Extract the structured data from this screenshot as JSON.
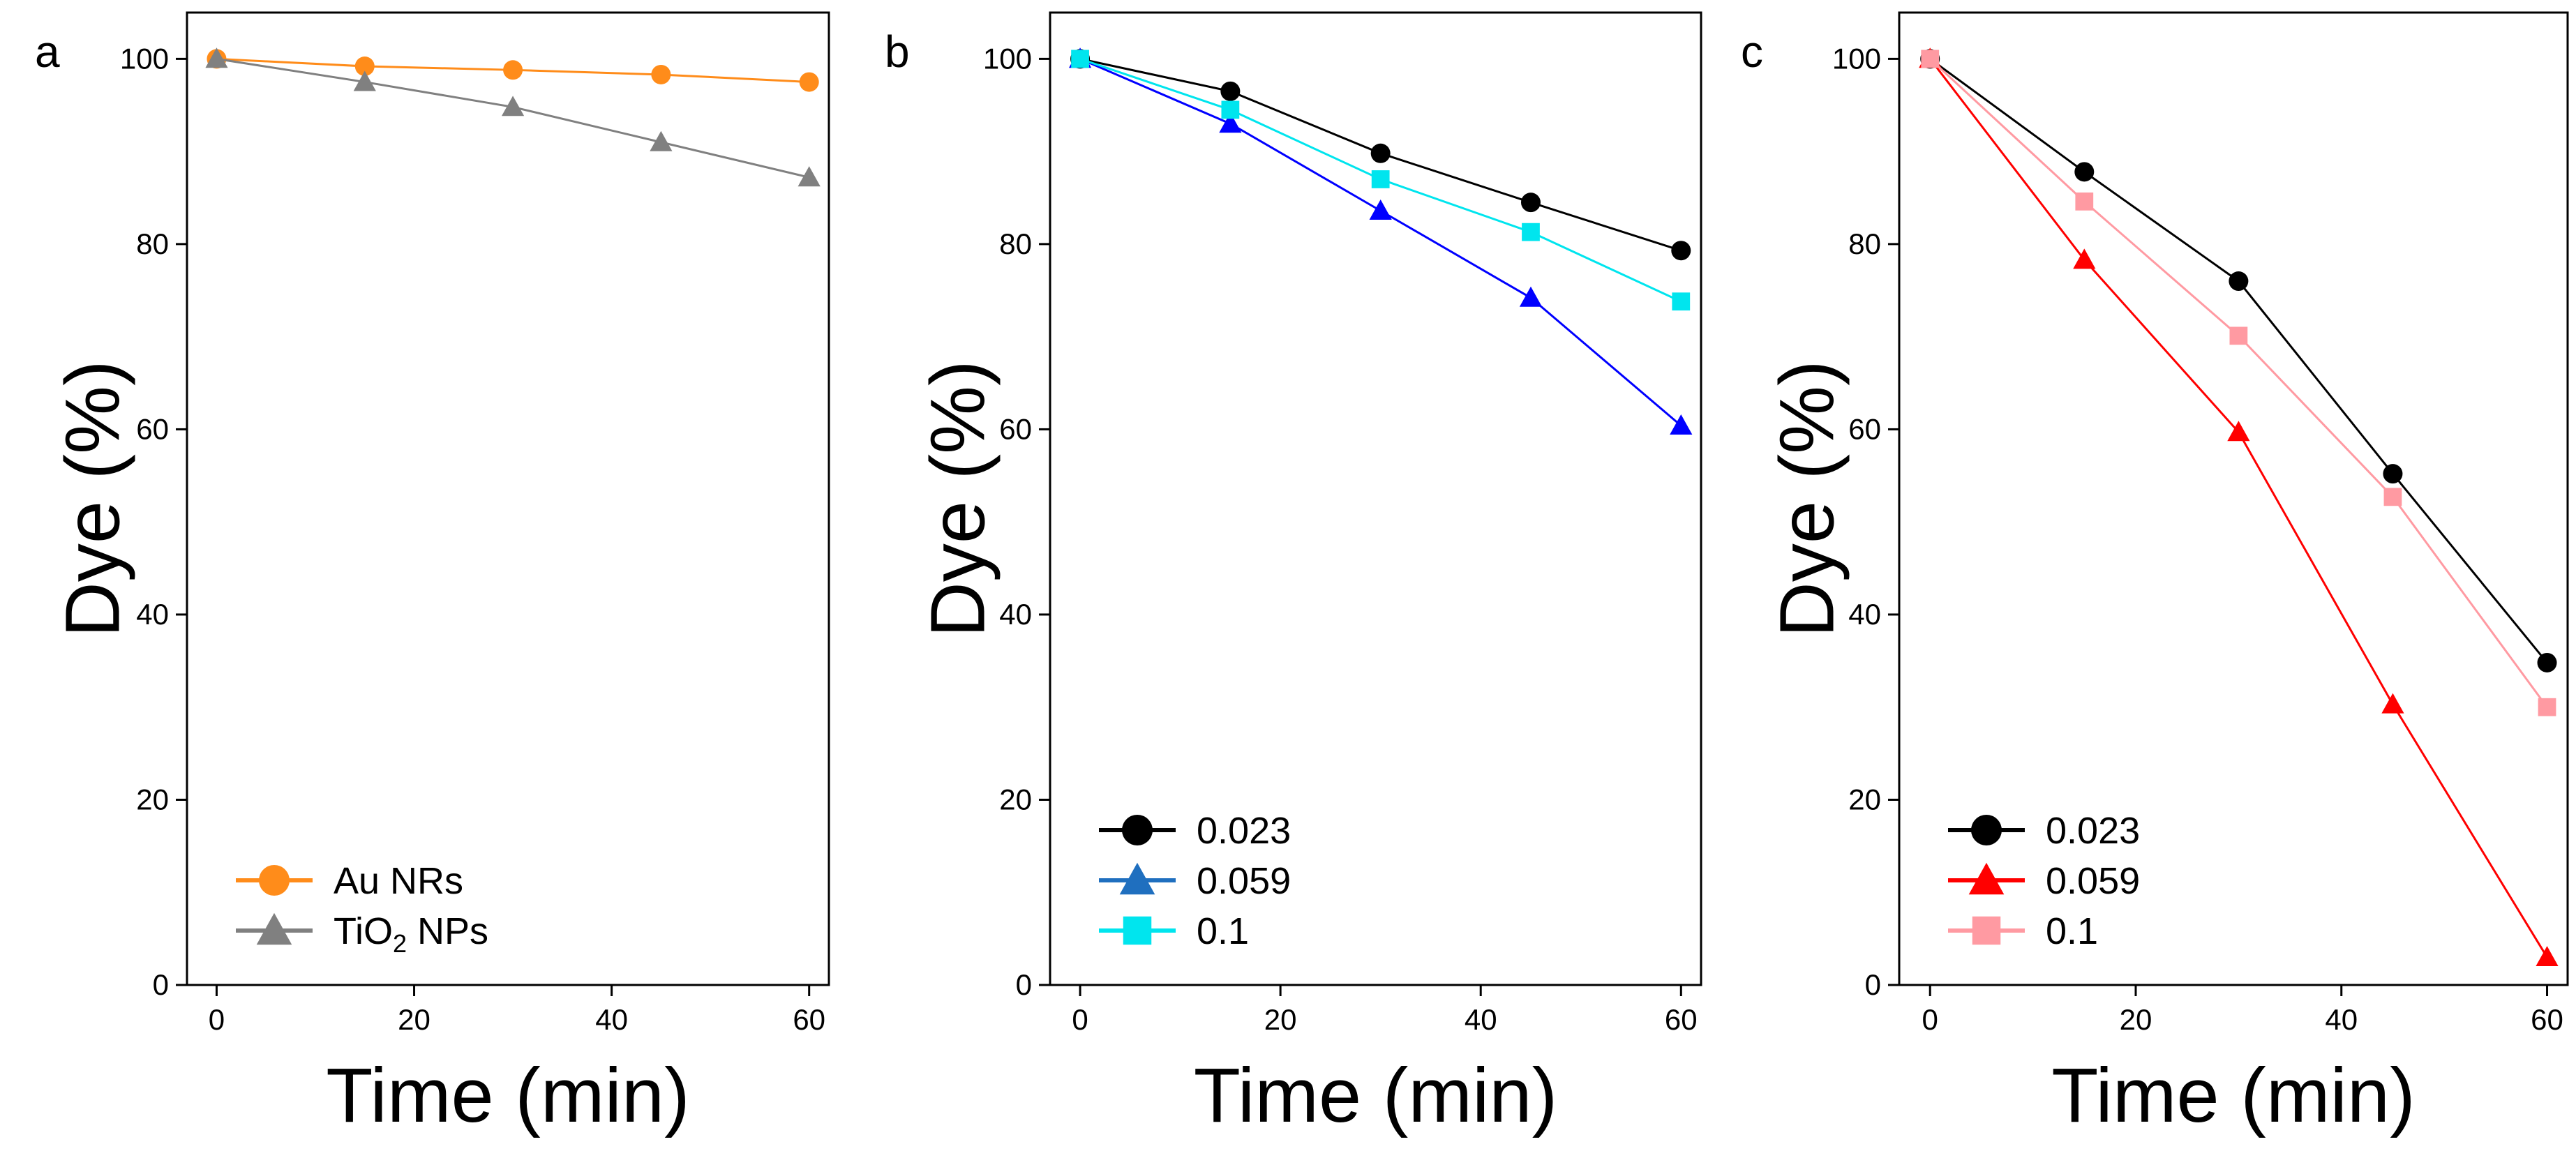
{
  "figure": {
    "panels": [
      "a",
      "b",
      "c"
    ]
  },
  "chart_data": [
    {
      "panel": "a",
      "type": "line",
      "xlabel": "Time (min)",
      "ylabel": "Dye (%)",
      "xlim": [
        -3,
        62
      ],
      "ylim": [
        0,
        105
      ],
      "xticks": [
        0,
        20,
        40,
        60
      ],
      "yticks": [
        0,
        20,
        40,
        60,
        80,
        100
      ],
      "legend_position": "bottom-left",
      "series": [
        {
          "name": "Au NRs",
          "legend_text": "Au NRs",
          "legend_sub": "",
          "legend_suffix": "",
          "color": "#ff8c1a",
          "marker": "circle",
          "x": [
            0,
            15,
            30,
            45,
            60
          ],
          "y": [
            100,
            99.2,
            98.8,
            98.3,
            97.5
          ]
        },
        {
          "name": "TiO2 NPs",
          "legend_text": "TiO",
          "legend_sub": "2",
          "legend_suffix": " NPs",
          "color": "#808080",
          "marker": "triangle",
          "x": [
            0,
            15,
            30,
            45,
            60
          ],
          "y": [
            100,
            97.5,
            94.8,
            91,
            87.2
          ]
        }
      ]
    },
    {
      "panel": "b",
      "type": "line",
      "xlabel": "Time (min)",
      "ylabel": "Dye (%)",
      "xlim": [
        -3,
        62
      ],
      "ylim": [
        0,
        105
      ],
      "xticks": [
        0,
        20,
        40,
        60
      ],
      "yticks": [
        0,
        20,
        40,
        60,
        80,
        100
      ],
      "legend_position": "bottom-left",
      "series": [
        {
          "name": "0.023",
          "legend_text": "0.023",
          "legend_sub": "",
          "legend_suffix": "",
          "color": "#000000",
          "marker": "circle",
          "x": [
            0,
            15,
            30,
            45,
            60
          ],
          "y": [
            100,
            96.5,
            89.8,
            84.5,
            79.3
          ]
        },
        {
          "name": "0.059",
          "legend_text": "0.059",
          "legend_sub": "",
          "legend_suffix": "",
          "color": "#0000ff",
          "legend_color": "#1f6fbf",
          "marker": "triangle",
          "x": [
            0,
            15,
            30,
            45,
            60
          ],
          "y": [
            100,
            93,
            83.6,
            74.2,
            60.4
          ]
        },
        {
          "name": "0.1",
          "legend_text": "0.1",
          "legend_sub": "",
          "legend_suffix": "",
          "color": "#00e5ee",
          "marker": "square",
          "x": [
            0,
            15,
            30,
            45,
            60
          ],
          "y": [
            100,
            94.5,
            87,
            81.3,
            73.8
          ]
        }
      ]
    },
    {
      "panel": "c",
      "type": "line",
      "xlabel": "Time (min)",
      "ylabel": "Dye (%)",
      "xlim": [
        -3,
        62
      ],
      "ylim": [
        0,
        105
      ],
      "xticks": [
        0,
        20,
        40,
        60
      ],
      "yticks": [
        0,
        20,
        40,
        60,
        80,
        100
      ],
      "legend_position": "bottom-left",
      "series": [
        {
          "name": "0.023",
          "legend_text": "0.023",
          "legend_sub": "",
          "legend_suffix": "",
          "color": "#000000",
          "marker": "circle",
          "x": [
            0,
            15,
            30,
            45,
            60
          ],
          "y": [
            100,
            87.8,
            76,
            55.2,
            34.8
          ]
        },
        {
          "name": "0.059",
          "legend_text": "0.059",
          "legend_sub": "",
          "legend_suffix": "",
          "color": "#ff0000",
          "marker": "triangle",
          "x": [
            0,
            15,
            30,
            45,
            60
          ],
          "y": [
            100,
            78.3,
            59.7,
            30.3,
            3
          ]
        },
        {
          "name": "0.1",
          "legend_text": "0.1",
          "legend_sub": "",
          "legend_suffix": "",
          "color": "#ff9aa2",
          "marker": "square",
          "x": [
            0,
            15,
            30,
            45,
            60
          ],
          "y": [
            100,
            84.6,
            70.1,
            52.7,
            30
          ]
        }
      ]
    }
  ]
}
